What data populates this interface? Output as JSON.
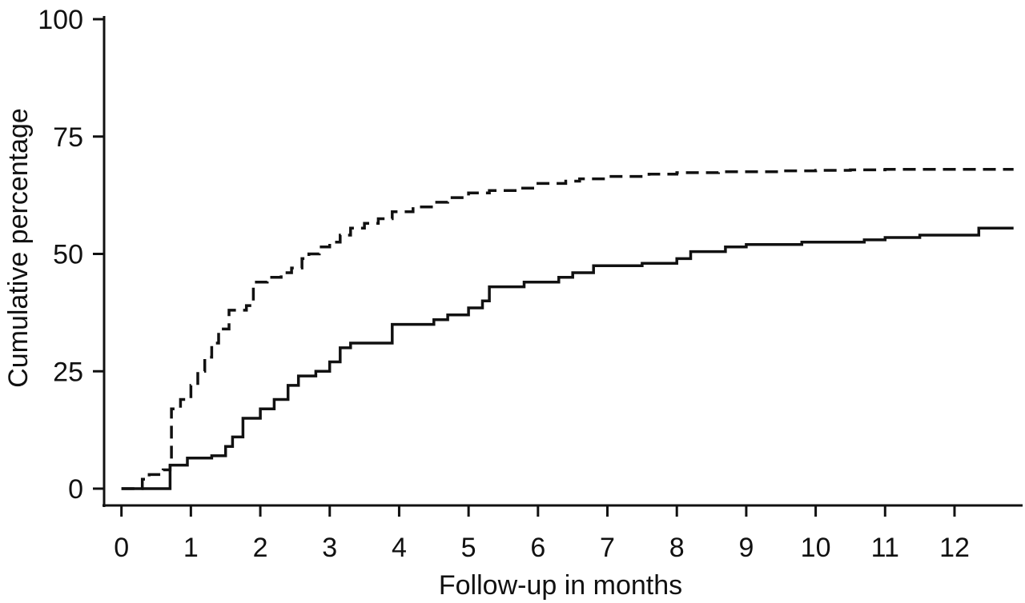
{
  "chart_data": {
    "type": "line",
    "step": true,
    "title": "",
    "xlabel": "Follow-up in months",
    "ylabel": "Cumulative percentage",
    "xlim": [
      -0.25,
      12.9
    ],
    "ylim": [
      0,
      100
    ],
    "xticks": [
      0,
      1,
      2,
      3,
      4,
      5,
      6,
      7,
      8,
      9,
      10,
      11,
      12
    ],
    "yticks": [
      0,
      25,
      50,
      75,
      100
    ],
    "grid": false,
    "legend": "none",
    "series": [
      {
        "line_style": "solid",
        "color": "#111111",
        "x": [
          0,
          0.7,
          0.7,
          0.95,
          1.3,
          1.5,
          1.6,
          1.75,
          2.0,
          2.2,
          2.4,
          2.55,
          2.8,
          3.0,
          3.15,
          3.3,
          3.8,
          3.9,
          4.5,
          4.7,
          5.0,
          5.2,
          5.3,
          5.8,
          6.3,
          6.5,
          6.8,
          7.5,
          8.0,
          8.2,
          8.7,
          9.0,
          9.8,
          10.7,
          11.0,
          11.5,
          12.35,
          12.85
        ],
        "y": [
          0,
          0,
          5,
          6.5,
          7,
          9,
          11,
          15,
          17,
          19,
          22,
          24,
          25,
          27,
          30,
          31,
          31,
          35,
          36,
          37,
          38.5,
          40,
          43,
          44,
          45,
          46,
          47.5,
          48,
          49,
          50.5,
          51.5,
          52,
          52.5,
          53,
          53.5,
          54,
          55.5,
          55.5
        ]
      },
      {
        "line_style": "dashed",
        "color": "#111111",
        "x": [
          0,
          0.3,
          0.4,
          0.6,
          0.7,
          0.72,
          0.85,
          1.0,
          1.1,
          1.2,
          1.3,
          1.4,
          1.55,
          1.8,
          1.9,
          2.1,
          2.3,
          2.45,
          2.6,
          2.7,
          2.85,
          3.0,
          3.15,
          3.3,
          3.5,
          3.7,
          3.9,
          4.2,
          4.5,
          4.7,
          5.0,
          5.3,
          5.7,
          6.0,
          6.4,
          6.6,
          7.0,
          7.6,
          8.0,
          8.6,
          9.5,
          10.0,
          10.5,
          11.0,
          12.85
        ],
        "y": [
          0,
          2,
          3,
          4,
          6,
          17,
          19,
          22,
          25,
          28,
          31,
          34,
          38,
          39,
          44,
          45,
          46,
          47,
          49,
          50,
          51.5,
          52.5,
          54,
          55.5,
          56.5,
          57.5,
          59,
          60,
          61,
          62,
          63,
          63.5,
          64,
          65,
          65.5,
          66,
          66.5,
          67,
          67.3,
          67.5,
          67.7,
          67.8,
          67.9,
          68,
          68
        ]
      }
    ]
  }
}
